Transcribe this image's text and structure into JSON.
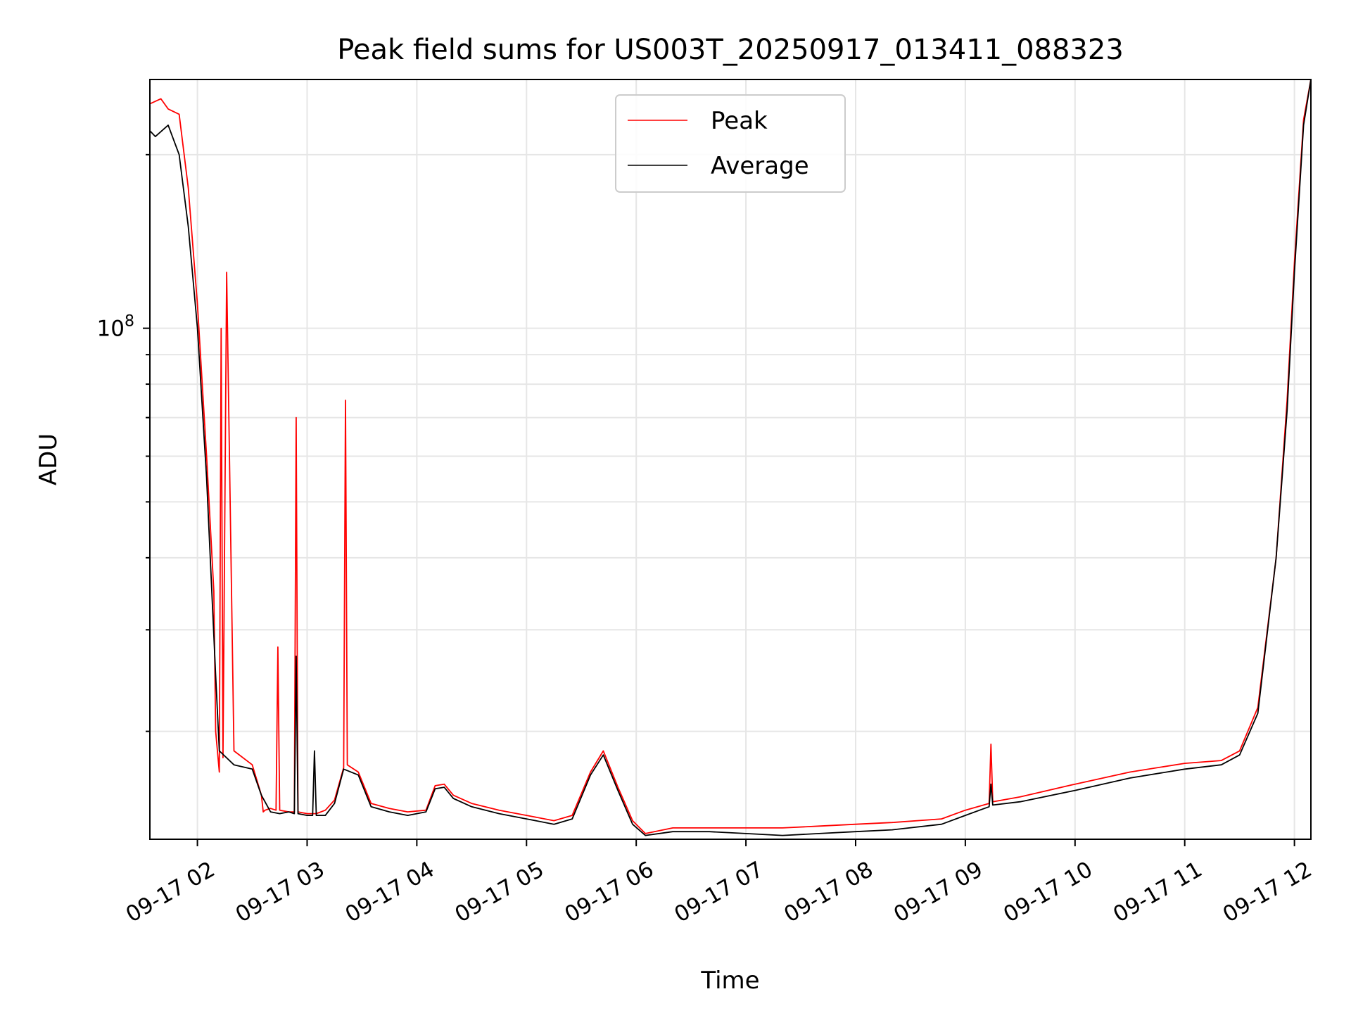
{
  "chart_data": {
    "type": "line",
    "title": "Peak field sums for US003T_20250917_013411_088323",
    "xlabel": "Time",
    "ylabel": "ADU",
    "yscale": "log",
    "ytick_labels": [
      {
        "base": "10",
        "exp": "8",
        "value": 100000000
      }
    ],
    "ylim": [
      13000000,
      270000000
    ],
    "xlim": [
      "2025-09-17 01:34",
      "2025-09-17 12:09"
    ],
    "x_tick_labels": [
      "09-17 02",
      "09-17 03",
      "09-17 04",
      "09-17 05",
      "09-17 06",
      "09-17 07",
      "09-17 08",
      "09-17 09",
      "09-17 10",
      "09-17 11",
      "09-17 12"
    ],
    "x_ticks": [
      "2025-09-17 02:00",
      "2025-09-17 03:00",
      "2025-09-17 04:00",
      "2025-09-17 05:00",
      "2025-09-17 06:00",
      "2025-09-17 07:00",
      "2025-09-17 08:00",
      "2025-09-17 09:00",
      "2025-09-17 10:00",
      "2025-09-17 11:00",
      "2025-09-17 12:00"
    ],
    "grid": true,
    "legend_position": "top-center",
    "series": [
      {
        "name": "Peak",
        "color": "#ff0000",
        "x": [
          "2025-09-17 01:34",
          "2025-09-17 01:40",
          "2025-09-17 01:44",
          "2025-09-17 01:50",
          "2025-09-17 01:55",
          "2025-09-17 02:00",
          "2025-09-17 02:05",
          "2025-09-17 02:09",
          "2025-09-17 02:10",
          "2025-09-17 02:12",
          "2025-09-17 02:13",
          "2025-09-17 02:14",
          "2025-09-17 02:16",
          "2025-09-17 02:20",
          "2025-09-17 02:30",
          "2025-09-17 02:35",
          "2025-09-17 02:36",
          "2025-09-17 02:37",
          "2025-09-17 02:40",
          "2025-09-17 02:43",
          "2025-09-17 02:44",
          "2025-09-17 02:45",
          "2025-09-17 02:50",
          "2025-09-17 02:53",
          "2025-09-17 02:54",
          "2025-09-17 02:55",
          "2025-09-17 03:00",
          "2025-09-17 03:05",
          "2025-09-17 03:10",
          "2025-09-17 03:15",
          "2025-09-17 03:20",
          "2025-09-17 03:21",
          "2025-09-17 03:22",
          "2025-09-17 03:28",
          "2025-09-17 03:35",
          "2025-09-17 03:45",
          "2025-09-17 03:55",
          "2025-09-17 04:05",
          "2025-09-17 04:10",
          "2025-09-17 04:15",
          "2025-09-17 04:20",
          "2025-09-17 04:30",
          "2025-09-17 04:45",
          "2025-09-17 05:00",
          "2025-09-17 05:15",
          "2025-09-17 05:25",
          "2025-09-17 05:35",
          "2025-09-17 05:42",
          "2025-09-17 05:50",
          "2025-09-17 05:58",
          "2025-09-17 06:05",
          "2025-09-17 06:20",
          "2025-09-17 06:40",
          "2025-09-17 07:00",
          "2025-09-17 07:20",
          "2025-09-17 07:40",
          "2025-09-17 08:00",
          "2025-09-17 08:20",
          "2025-09-17 08:47",
          "2025-09-17 09:00",
          "2025-09-17 09:13",
          "2025-09-17 09:14",
          "2025-09-17 09:15",
          "2025-09-17 09:30",
          "2025-09-17 10:00",
          "2025-09-17 10:30",
          "2025-09-17 11:00",
          "2025-09-17 11:20",
          "2025-09-17 11:30",
          "2025-09-17 11:40",
          "2025-09-17 11:50",
          "2025-09-17 11:56",
          "2025-09-17 12:00",
          "2025-09-17 12:05",
          "2025-09-17 12:09"
        ],
        "y": [
          245000000,
          250000000,
          240000000,
          235000000,
          175000000,
          110000000,
          60000000,
          35000000,
          20000000,
          17000000,
          100000000,
          18000000,
          125000000,
          18500000,
          17500000,
          15500000,
          14500000,
          14600000,
          14700000,
          14600000,
          28000000,
          14600000,
          14500000,
          14500000,
          70000000,
          14500000,
          14400000,
          14400000,
          14600000,
          15200000,
          17300000,
          75000000,
          17500000,
          17000000,
          15000000,
          14700000,
          14500000,
          14600000,
          16100000,
          16200000,
          15500000,
          15000000,
          14600000,
          14300000,
          14000000,
          14300000,
          17000000,
          18500000,
          16000000,
          14000000,
          13300000,
          13600000,
          13600000,
          13600000,
          13600000,
          13700000,
          13800000,
          13900000,
          14100000,
          14600000,
          15000000,
          19000000,
          15100000,
          15400000,
          16200000,
          17000000,
          17600000,
          17800000,
          18500000,
          22000000,
          40000000,
          75000000,
          130000000,
          230000000,
          270000000
        ]
      },
      {
        "name": "Average",
        "color": "#000000",
        "x": [
          "2025-09-17 01:34",
          "2025-09-17 01:37",
          "2025-09-17 01:44",
          "2025-09-17 01:50",
          "2025-09-17 01:55",
          "2025-09-17 02:00",
          "2025-09-17 02:05",
          "2025-09-17 02:10",
          "2025-09-17 02:12",
          "2025-09-17 02:20",
          "2025-09-17 02:30",
          "2025-09-17 02:35",
          "2025-09-17 02:40",
          "2025-09-17 02:45",
          "2025-09-17 02:50",
          "2025-09-17 02:53",
          "2025-09-17 02:54",
          "2025-09-17 02:55",
          "2025-09-17 03:00",
          "2025-09-17 03:03",
          "2025-09-17 03:04",
          "2025-09-17 03:05",
          "2025-09-17 03:10",
          "2025-09-17 03:15",
          "2025-09-17 03:20",
          "2025-09-17 03:28",
          "2025-09-17 03:35",
          "2025-09-17 03:45",
          "2025-09-17 03:55",
          "2025-09-17 04:05",
          "2025-09-17 04:10",
          "2025-09-17 04:15",
          "2025-09-17 04:20",
          "2025-09-17 04:30",
          "2025-09-17 04:45",
          "2025-09-17 05:00",
          "2025-09-17 05:15",
          "2025-09-17 05:25",
          "2025-09-17 05:35",
          "2025-09-17 05:42",
          "2025-09-17 05:50",
          "2025-09-17 05:58",
          "2025-09-17 06:05",
          "2025-09-17 06:20",
          "2025-09-17 06:40",
          "2025-09-17 07:00",
          "2025-09-17 07:20",
          "2025-09-17 07:40",
          "2025-09-17 08:00",
          "2025-09-17 08:20",
          "2025-09-17 08:47",
          "2025-09-17 09:00",
          "2025-09-17 09:13",
          "2025-09-17 09:14",
          "2025-09-17 09:15",
          "2025-09-17 09:30",
          "2025-09-17 10:00",
          "2025-09-17 10:30",
          "2025-09-17 11:00",
          "2025-09-17 11:20",
          "2025-09-17 11:30",
          "2025-09-17 11:40",
          "2025-09-17 11:50",
          "2025-09-17 11:56",
          "2025-09-17 12:00",
          "2025-09-17 12:05",
          "2025-09-17 12:09"
        ],
        "y": [
          220000000,
          215000000,
          225000000,
          200000000,
          150000000,
          100000000,
          55000000,
          25000000,
          18500000,
          17500000,
          17200000,
          15500000,
          14500000,
          14400000,
          14500000,
          14400000,
          27000000,
          14400000,
          14300000,
          14300000,
          18500000,
          14300000,
          14300000,
          15000000,
          17200000,
          16800000,
          14800000,
          14500000,
          14300000,
          14500000,
          15900000,
          16000000,
          15300000,
          14800000,
          14400000,
          14100000,
          13800000,
          14100000,
          16800000,
          18200000,
          15800000,
          13800000,
          13200000,
          13400000,
          13400000,
          13300000,
          13200000,
          13300000,
          13400000,
          13500000,
          13800000,
          14300000,
          14800000,
          16200000,
          14900000,
          15100000,
          15800000,
          16600000,
          17200000,
          17500000,
          18200000,
          21500000,
          40000000,
          72000000,
          125000000,
          225000000,
          270000000
        ]
      }
    ]
  }
}
